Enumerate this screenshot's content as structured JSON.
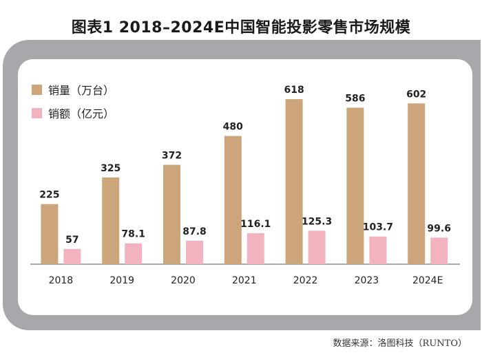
{
  "chart_data": {
    "type": "bar",
    "title": "图表1  2018–2024E中国智能投影零售市场规模",
    "categories": [
      "2018",
      "2019",
      "2020",
      "2021",
      "2022",
      "2023",
      "2024E"
    ],
    "series": [
      {
        "name": "销量（万台）",
        "color": "#cda57a",
        "values": [
          225,
          325,
          372,
          480,
          618,
          586,
          602
        ]
      },
      {
        "name": "销额（亿元）",
        "color": "#f2b2c0",
        "values": [
          57,
          78.1,
          87.8,
          116.1,
          125.3,
          103.7,
          99.6
        ]
      }
    ],
    "value_labels": [
      [
        "225",
        "325",
        "372",
        "480",
        "618",
        "586",
        "602"
      ],
      [
        "57",
        "78.1",
        "87.8",
        "116.1",
        "125.3",
        "103.7",
        "99.6"
      ]
    ],
    "xlabel": "",
    "ylabel": "",
    "ylim": [
      0,
      680
    ],
    "grid": false,
    "legend_position": "top-left"
  },
  "source": "数据来源：洛图科技（RUNTO）"
}
